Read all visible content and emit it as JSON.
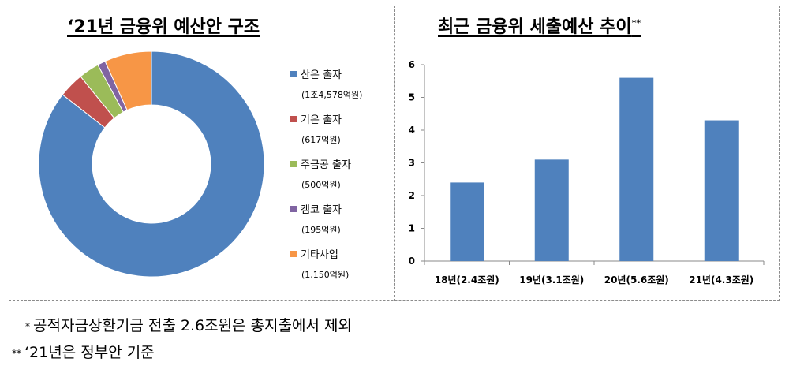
{
  "left_panel": {
    "title": "‘21년 금융위 예산안 구조"
  },
  "right_panel": {
    "title": "최근 금융위 세출예산 추이",
    "title_mark": "**"
  },
  "chart_data": [
    {
      "type": "pie",
      "title": "‘21년 금융위 예산안 구조",
      "donut": true,
      "slices": [
        {
          "label": "산은 출자",
          "value_label": "(1조4,578억원)",
          "value": 14578,
          "color": "#4f81bd"
        },
        {
          "label": "기은 출자",
          "value_label": "(617억원)",
          "value": 617,
          "color": "#c0504d"
        },
        {
          "label": "주금공 출자",
          "value_label": "(500억원)",
          "value": 500,
          "color": "#9bbb59"
        },
        {
          "label": "캠코 출자",
          "value_label": "(195억원)",
          "value": 195,
          "color": "#8064a2"
        },
        {
          "label": "기타사업",
          "value_label": "(1,150억원)",
          "value": 1150,
          "color": "#f79646"
        }
      ],
      "legend_position": "right"
    },
    {
      "type": "bar",
      "title": "최근 금융위 세출예산 추이",
      "categories": [
        "18년(2.4조원)",
        "19년(3.1조원)",
        "20년(5.6조원)",
        "21년(4.3조원)"
      ],
      "values": [
        2.4,
        3.1,
        5.6,
        4.3
      ],
      "ylim": [
        0,
        6
      ],
      "yticks": [
        "0",
        "1",
        "2",
        "3",
        "4",
        "5",
        "6"
      ],
      "grid": false,
      "color": "#4f81bd"
    }
  ],
  "footnotes": [
    {
      "mark": "*",
      "text": "공적자금상환기금 전출 2.6조원은 총지출에서 제외"
    },
    {
      "mark": "**",
      "text": "‘21년은 정부안 기준"
    }
  ]
}
